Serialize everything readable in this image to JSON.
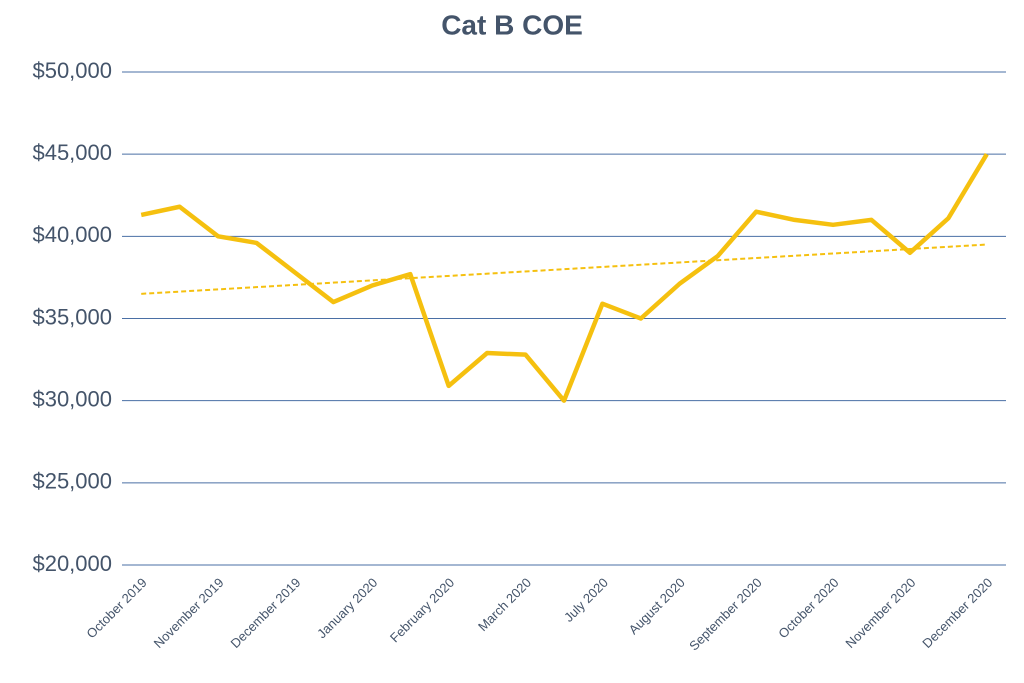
{
  "chart_data": {
    "type": "line",
    "title": "Cat B COE",
    "categories": [
      "October 2019",
      null,
      "November 2019",
      null,
      "December 2019",
      null,
      "January 2020",
      null,
      "February 2020",
      null,
      "March 2020",
      null,
      "July 2020",
      null,
      "August 2020",
      null,
      "September 2020",
      null,
      "October 2020",
      null,
      "November 2020",
      null,
      "December 2020"
    ],
    "series": [
      {
        "color": "#f5c00f",
        "values": [
          41300,
          41800,
          40000,
          39600,
          37800,
          36000,
          37000,
          37700,
          30900,
          32900,
          32800,
          30000,
          35900,
          35000,
          37100,
          38800,
          41500,
          41000,
          40700,
          41000,
          39000,
          41100,
          45000
        ]
      }
    ],
    "trendline": {
      "color": "#f5c00f",
      "values": [
        36500,
        39500
      ]
    },
    "ylim": [
      20000,
      50000
    ],
    "yticks": [
      {
        "value": 20000,
        "label": "$20,000"
      },
      {
        "value": 25000,
        "label": "$25,000"
      },
      {
        "value": 30000,
        "label": "$30,000"
      },
      {
        "value": 35000,
        "label": "$35,000"
      },
      {
        "value": 40000,
        "label": "$40,000"
      },
      {
        "value": 45000,
        "label": "$45,000"
      },
      {
        "value": 50000,
        "label": "$50,000"
      }
    ],
    "grid": true
  }
}
